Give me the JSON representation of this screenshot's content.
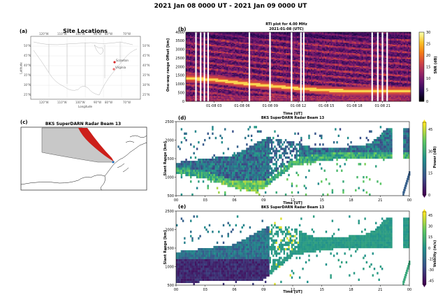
{
  "figure": {
    "title": "2021 Jan 08 0000 UT - 2021 Jan 09 0000 UT"
  },
  "panel_a": {
    "label": "(a)",
    "title": "Site Locations",
    "xlabel": "Longitude",
    "ylabel": "Latitude",
    "lon_ticks": [
      "120°W",
      "110°W",
      "100°W",
      "90°W",
      "80°W",
      "70°W"
    ],
    "lat_ticks": [
      "50°N",
      "45°N",
      "40°N",
      "35°N",
      "30°N",
      "25°N"
    ],
    "sites": [
      "Scranton",
      "Virginia"
    ]
  },
  "panel_b": {
    "label": "(b)",
    "title_line1": "RTI plot for  4.00 MHz",
    "title_line2": "2021-01-08 (UTC)",
    "ylabel": "One-way range Offset [km]",
    "xlabel": "Time [UT]",
    "yticks": [
      "4000",
      "3500",
      "3000",
      "2500",
      "2000",
      "1500",
      "1000",
      "500",
      "0"
    ],
    "xticks": [
      "01-08 03",
      "01-08 06",
      "01-08 09",
      "01-08 12",
      "01-08 15",
      "01-08 18",
      "01-08 21"
    ],
    "colorbar": {
      "label": "SNR (dB)",
      "ticks": [
        "30",
        "25",
        "20",
        "15",
        "10",
        "5",
        "0"
      ]
    }
  },
  "panel_c": {
    "label": "(c)",
    "title": "BKS SuperDARN Radar Beam 13"
  },
  "panel_d": {
    "label": "(d)",
    "title": "BKS SuperDARN Radar Beam 13",
    "ylabel": "Slant Range [km]",
    "xlabel": "Time [UT]",
    "yticks": [
      "2500",
      "2000",
      "1500",
      "1000",
      "500"
    ],
    "xticks": [
      "00",
      "03",
      "06",
      "09",
      "12",
      "15",
      "18",
      "21",
      "00"
    ],
    "colorbar": {
      "label": "Power (dB)",
      "ticks": [
        "45",
        "30",
        "15",
        "0"
      ]
    }
  },
  "panel_e": {
    "label": "(e)",
    "title": "BKS SuperDARN Radar Beam 13",
    "ylabel": "Slant Range [km]",
    "xlabel": "Time [UT]",
    "yticks": [
      "2500",
      "2000",
      "1500",
      "1000",
      "500"
    ],
    "xticks": [
      "00",
      "03",
      "06",
      "09",
      "12",
      "15",
      "18",
      "21",
      "00"
    ],
    "colorbar": {
      "label": "Velocity (m/s)",
      "ticks": [
        "45",
        "30",
        "15",
        "0",
        "-15",
        "-30",
        "-45"
      ]
    }
  },
  "chart_data": [
    {
      "type": "heatmap",
      "title": "RTI plot for 4.00 MHz 2021-01-08 (UTC)",
      "xlabel": "Time [UT]",
      "ylabel": "One-way range Offset [km]",
      "xlim_hours": [
        0,
        24
      ],
      "ylim": [
        0,
        4000
      ],
      "colorbar_range": [
        0,
        30
      ],
      "colorbar_label": "SNR (dB)",
      "data_gap_hours": [
        1.0,
        1.5,
        1.9,
        2.3,
        6.7,
        8.9,
        11.2,
        12.2,
        12.5,
        19.8,
        20.4,
        20.9,
        21.4
      ],
      "ridge_range_km": [
        [
          0,
          1350
        ],
        [
          3,
          1250
        ],
        [
          6,
          1050
        ],
        [
          9,
          900
        ],
        [
          12,
          750
        ],
        [
          15,
          650
        ],
        [
          18,
          600
        ],
        [
          21,
          600
        ],
        [
          24,
          620
        ]
      ]
    },
    {
      "type": "heatmap",
      "title": "BKS SuperDARN Radar Beam 13",
      "xlabel": "Time [UT]",
      "ylabel": "Slant Range [km]",
      "xlim_hours": [
        0,
        24
      ],
      "ylim": [
        500,
        2500
      ],
      "colorbar_range": [
        0,
        50
      ],
      "colorbar_label": "Power (dB)",
      "band_lower_km": [
        [
          0,
          1100
        ],
        [
          3,
          950
        ],
        [
          6,
          700
        ],
        [
          8,
          600
        ],
        [
          9,
          700
        ],
        [
          12,
          1300
        ],
        [
          14,
          1400
        ],
        [
          17,
          1500
        ],
        [
          20,
          1500
        ],
        [
          21.5,
          1500
        ]
      ],
      "band_upper_km": [
        [
          0,
          1400
        ],
        [
          3,
          1500
        ],
        [
          6,
          1600
        ],
        [
          8,
          1900
        ],
        [
          9.5,
          2100
        ],
        [
          12,
          1950
        ],
        [
          14,
          1800
        ],
        [
          17,
          1800
        ],
        [
          20,
          1900
        ],
        [
          21.5,
          2300
        ]
      ]
    },
    {
      "type": "heatmap",
      "title": "BKS SuperDARN Radar Beam 13",
      "xlabel": "Time [UT]",
      "ylabel": "Slant Range [km]",
      "xlim_hours": [
        0,
        24
      ],
      "ylim": [
        500,
        2500
      ],
      "colorbar_range": [
        -50,
        50
      ],
      "colorbar_label": "Velocity (m/s)",
      "band_lower_km": [
        [
          0,
          550
        ],
        [
          3,
          600
        ],
        [
          6,
          600
        ],
        [
          9,
          650
        ],
        [
          12,
          1300
        ],
        [
          14,
          1400
        ],
        [
          17,
          1500
        ],
        [
          20,
          1500
        ],
        [
          21.5,
          1500
        ]
      ],
      "band_upper_km": [
        [
          0,
          1400
        ],
        [
          3,
          1500
        ],
        [
          6,
          1600
        ],
        [
          8,
          1900
        ],
        [
          9.5,
          2100
        ],
        [
          12,
          2050
        ],
        [
          14,
          1800
        ],
        [
          17,
          1800
        ],
        [
          20,
          1900
        ],
        [
          21.5,
          2300
        ]
      ]
    }
  ]
}
